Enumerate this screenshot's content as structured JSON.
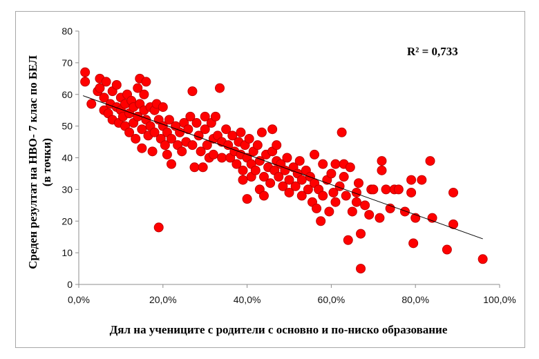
{
  "chart_data": {
    "type": "scatter",
    "ylabel_line1": "Среден резултат на НВО- 7 клас по БЕЛ",
    "ylabel_line2": "(в точки)",
    "xlabel": "Дял на учениците с родители с основно и по-ниско образование",
    "annotation": "R² = 0,733",
    "xlim": [
      0,
      100
    ],
    "ylim": [
      0,
      80
    ],
    "x_ticks": [
      0,
      20,
      40,
      60,
      80,
      100
    ],
    "x_tick_labels": [
      "0,0%",
      "20,0%",
      "40,0%",
      "60,0%",
      "80,0%",
      "100,0%"
    ],
    "y_ticks": [
      0,
      10,
      20,
      30,
      40,
      50,
      60,
      70,
      80
    ],
    "y_tick_labels": [
      "0",
      "10",
      "20",
      "30",
      "40",
      "50",
      "60",
      "70",
      "80"
    ],
    "marker_color": "#ff0000",
    "marker_edge_color": "#c00000",
    "trendline": {
      "x": [
        1,
        96
      ],
      "y": [
        59.6,
        14.4
      ],
      "color": "#000000"
    },
    "points": [
      [
        1.5,
        67
      ],
      [
        1.5,
        64
      ],
      [
        3,
        57
      ],
      [
        4.5,
        61
      ],
      [
        5,
        65
      ],
      [
        5,
        62
      ],
      [
        6,
        59
      ],
      [
        6,
        55
      ],
      [
        6.5,
        64
      ],
      [
        7,
        54
      ],
      [
        7.5,
        57
      ],
      [
        8,
        61
      ],
      [
        8,
        52
      ],
      [
        9,
        63
      ],
      [
        9,
        56
      ],
      [
        9.5,
        51
      ],
      [
        10,
        59
      ],
      [
        10,
        55
      ],
      [
        10.5,
        53
      ],
      [
        11,
        57
      ],
      [
        11,
        50
      ],
      [
        11.5,
        60
      ],
      [
        12,
        54
      ],
      [
        12,
        48
      ],
      [
        12.5,
        58
      ],
      [
        13,
        56
      ],
      [
        13,
        51
      ],
      [
        13.5,
        46
      ],
      [
        14,
        62
      ],
      [
        14,
        53
      ],
      [
        14.5,
        65
      ],
      [
        14.5,
        57
      ],
      [
        15,
        49
      ],
      [
        15,
        43
      ],
      [
        15.5,
        60
      ],
      [
        15.5,
        55
      ],
      [
        16,
        64
      ],
      [
        16,
        52
      ],
      [
        16.5,
        47
      ],
      [
        17,
        56
      ],
      [
        17,
        50
      ],
      [
        17.5,
        42
      ],
      [
        18,
        55
      ],
      [
        18,
        48
      ],
      [
        18.5,
        57
      ],
      [
        19,
        52
      ],
      [
        19,
        18
      ],
      [
        19.5,
        46
      ],
      [
        20,
        56
      ],
      [
        20,
        50
      ],
      [
        20.5,
        44
      ],
      [
        21,
        48
      ],
      [
        21,
        41
      ],
      [
        21.5,
        52
      ],
      [
        22,
        46
      ],
      [
        22,
        38
      ],
      [
        23,
        50
      ],
      [
        23.5,
        44
      ],
      [
        24,
        48
      ],
      [
        24.5,
        42
      ],
      [
        25,
        51
      ],
      [
        25.5,
        45
      ],
      [
        26,
        49
      ],
      [
        26.5,
        53
      ],
      [
        27,
        61
      ],
      [
        27,
        44
      ],
      [
        27.5,
        37
      ],
      [
        28,
        51
      ],
      [
        28.5,
        47
      ],
      [
        29,
        42
      ],
      [
        29.5,
        37
      ],
      [
        30,
        53
      ],
      [
        30,
        49
      ],
      [
        30.5,
        44
      ],
      [
        31,
        40
      ],
      [
        31.5,
        51
      ],
      [
        32,
        46
      ],
      [
        32,
        41
      ],
      [
        32.5,
        53
      ],
      [
        33,
        47
      ],
      [
        33.5,
        62
      ],
      [
        34,
        45
      ],
      [
        34,
        40
      ],
      [
        35,
        49
      ],
      [
        35.5,
        44
      ],
      [
        36,
        40
      ],
      [
        36.5,
        47
      ],
      [
        37,
        42
      ],
      [
        37.5,
        38
      ],
      [
        38,
        45
      ],
      [
        38.5,
        48
      ],
      [
        38.5,
        41
      ],
      [
        39,
        36
      ],
      [
        39,
        33
      ],
      [
        39.5,
        44
      ],
      [
        40,
        40
      ],
      [
        40,
        27
      ],
      [
        40.5,
        46
      ],
      [
        41,
        38
      ],
      [
        41,
        34
      ],
      [
        41.5,
        42
      ],
      [
        42,
        36
      ],
      [
        42.5,
        44
      ],
      [
        43,
        39
      ],
      [
        43,
        30
      ],
      [
        43.5,
        48
      ],
      [
        44,
        34
      ],
      [
        44,
        28
      ],
      [
        44.5,
        41
      ],
      [
        45,
        37
      ],
      [
        45.5,
        32
      ],
      [
        46,
        49
      ],
      [
        46,
        42
      ],
      [
        46.5,
        36
      ],
      [
        47,
        39
      ],
      [
        47,
        44
      ],
      [
        47.5,
        34
      ],
      [
        48,
        38
      ],
      [
        48.5,
        31
      ],
      [
        49,
        36
      ],
      [
        49.5,
        40
      ],
      [
        50,
        33
      ],
      [
        50,
        29
      ],
      [
        51,
        37
      ],
      [
        51.5,
        31
      ],
      [
        52,
        35
      ],
      [
        52.5,
        39
      ],
      [
        53,
        33
      ],
      [
        53,
        28
      ],
      [
        54,
        36
      ],
      [
        54.5,
        30
      ],
      [
        55,
        34
      ],
      [
        55.5,
        26
      ],
      [
        56,
        41
      ],
      [
        56,
        32
      ],
      [
        56.5,
        24
      ],
      [
        57,
        30
      ],
      [
        57.5,
        20
      ],
      [
        58,
        38
      ],
      [
        58,
        28
      ],
      [
        59,
        33
      ],
      [
        59.5,
        23
      ],
      [
        60,
        35
      ],
      [
        60.5,
        29
      ],
      [
        61,
        38
      ],
      [
        61,
        26
      ],
      [
        62,
        31
      ],
      [
        62.5,
        48
      ],
      [
        63,
        38
      ],
      [
        63,
        34
      ],
      [
        63.5,
        28
      ],
      [
        64,
        14
      ],
      [
        64.5,
        37
      ],
      [
        65,
        23
      ],
      [
        66,
        29
      ],
      [
        66,
        26
      ],
      [
        66.5,
        32
      ],
      [
        67,
        16
      ],
      [
        67,
        5
      ],
      [
        68,
        25
      ],
      [
        69,
        22
      ],
      [
        69.5,
        30
      ],
      [
        70,
        30
      ],
      [
        71.5,
        21
      ],
      [
        72,
        39
      ],
      [
        72,
        36
      ],
      [
        73,
        30
      ],
      [
        74,
        24
      ],
      [
        75,
        30
      ],
      [
        76,
        30
      ],
      [
        77.5,
        23
      ],
      [
        79,
        33
      ],
      [
        79,
        29
      ],
      [
        79.5,
        13
      ],
      [
        80,
        21
      ],
      [
        81.5,
        33
      ],
      [
        83.5,
        39
      ],
      [
        84,
        21
      ],
      [
        87.5,
        11
      ],
      [
        89,
        19
      ],
      [
        89,
        29
      ],
      [
        96,
        8
      ]
    ]
  }
}
